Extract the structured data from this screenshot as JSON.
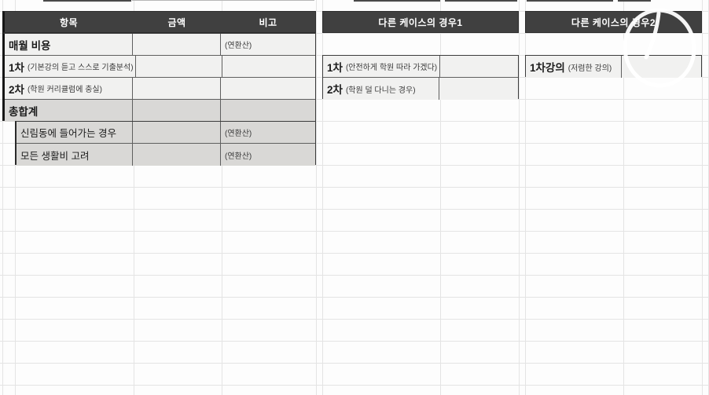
{
  "theme": {
    "header_bg": "#404040",
    "header_text": "#ffffff",
    "row_light_bg": "#f1f1f0",
    "row_shaded_bg": "#d9d8d6",
    "grid_color": "#e4e4e4",
    "annotation_color": "#ffffff"
  },
  "left_table": {
    "headers": {
      "item": "항목",
      "amount": "금액",
      "remark": "비고"
    },
    "rows": [
      {
        "label": "매월 비용",
        "label_note": "",
        "amount": "",
        "remark": "(연환산)"
      },
      {
        "label": "1차",
        "label_note": "(기본강의 듣고 스스로 기출분석)",
        "amount": "",
        "remark": ""
      },
      {
        "label": "2차",
        "label_note": "(학원 커리큘럼에 충실)",
        "amount": "",
        "remark": ""
      },
      {
        "label": "총합계",
        "label_note": "",
        "amount": "",
        "remark": ""
      },
      {
        "label": "신림동에 들어가는 경우",
        "label_note": "",
        "amount": "",
        "remark": "(연환산)"
      },
      {
        "label": "모든 생활비 고려",
        "label_note": "",
        "amount": "",
        "remark": "(연환산)"
      }
    ]
  },
  "case1_table": {
    "title": "다른 케이스의 경우1",
    "rows": [
      {
        "label": "1차",
        "label_note": "(안전하게 학원 따라 가겠다)",
        "value": ""
      },
      {
        "label": "2차",
        "label_note": "(학원 덜 다니는 경우)",
        "value": ""
      }
    ]
  },
  "case2_table": {
    "title": "다른 케이스의 경우2",
    "rows": [
      {
        "label": "1차강의",
        "label_note": "(저렴한 강의)",
        "value": ""
      }
    ]
  },
  "annotation": {
    "kind": "hand-drawn circle with stroke",
    "color": "#ffffff"
  }
}
